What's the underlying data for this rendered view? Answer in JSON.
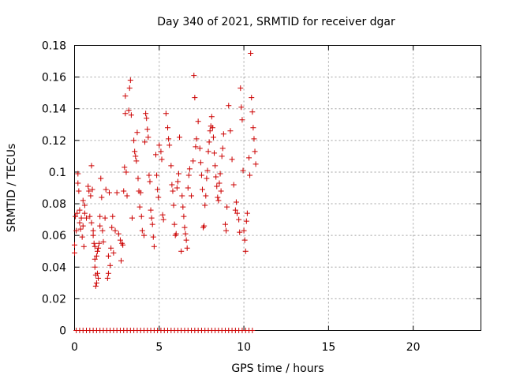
{
  "chart_data": {
    "type": "scatter",
    "title": "Day 340 of 2021, SRMTID for receiver dgar",
    "xlabel": "GPS time / hours",
    "ylabel": "SRMTID / TECUs",
    "xlim": [
      0,
      24
    ],
    "ylim": [
      0,
      0.18
    ],
    "xticks": [
      0,
      5,
      10,
      15,
      20
    ],
    "xtick_labels": [
      "0",
      "5",
      "10",
      "15",
      "20"
    ],
    "yticks": [
      0,
      0.02,
      0.04,
      0.06,
      0.08,
      0.1,
      0.12,
      0.14,
      0.16,
      0.18
    ],
    "ytick_labels": [
      "0",
      "0.02",
      "0.04",
      "0.06",
      "0.08",
      "0.1",
      "0.12",
      "0.14",
      "0.16",
      "0.18"
    ],
    "grid": true,
    "marker": "+",
    "color": "#cc0000",
    "series": [
      {
        "name": "SRMTID",
        "points": [
          [
            0.0,
            0.049
          ],
          [
            0.0,
            0.054
          ],
          [
            0.05,
            0.072
          ],
          [
            0.1,
            0.063
          ],
          [
            0.15,
            0.074
          ],
          [
            0.2,
            0.099
          ],
          [
            0.2,
            0.093
          ],
          [
            0.25,
            0.088
          ],
          [
            0.3,
            0.076
          ],
          [
            0.3,
            0.068
          ],
          [
            0.35,
            0.064
          ],
          [
            0.4,
            0.071
          ],
          [
            0.45,
            0.059
          ],
          [
            0.5,
            0.082
          ],
          [
            0.5,
            0.066
          ],
          [
            0.55,
            0.053
          ],
          [
            0.6,
            0.079
          ],
          [
            0.6,
            0.074
          ],
          [
            0.7,
            0.071
          ],
          [
            0.8,
            0.091
          ],
          [
            0.85,
            0.088
          ],
          [
            0.9,
            0.072
          ],
          [
            0.95,
            0.085
          ],
          [
            1.0,
            0.104
          ],
          [
            1.0,
            0.068
          ],
          [
            1.05,
            0.089
          ],
          [
            1.1,
            0.063
          ],
          [
            1.1,
            0.06
          ],
          [
            1.15,
            0.055
          ],
          [
            1.2,
            0.053
          ],
          [
            1.2,
            0.045
          ],
          [
            1.2,
            0.04
          ],
          [
            1.25,
            0.035
          ],
          [
            1.25,
            0.028
          ],
          [
            1.3,
            0.03
          ],
          [
            1.3,
            0.047
          ],
          [
            1.35,
            0.05
          ],
          [
            1.35,
            0.036
          ],
          [
            1.4,
            0.033
          ],
          [
            1.4,
            0.052
          ],
          [
            1.45,
            0.055
          ],
          [
            1.5,
            0.072
          ],
          [
            1.5,
            0.066
          ],
          [
            1.55,
            0.096
          ],
          [
            1.6,
            0.084
          ],
          [
            1.65,
            0.063
          ],
          [
            1.7,
            0.056
          ],
          [
            1.8,
            0.071
          ],
          [
            1.85,
            0.089
          ],
          [
            1.95,
            0.033
          ],
          [
            2.0,
            0.036
          ],
          [
            2.0,
            0.047
          ],
          [
            2.05,
            0.087
          ],
          [
            2.1,
            0.041
          ],
          [
            2.15,
            0.052
          ],
          [
            2.2,
            0.065
          ],
          [
            2.25,
            0.072
          ],
          [
            2.3,
            0.049
          ],
          [
            2.4,
            0.063
          ],
          [
            2.5,
            0.087
          ],
          [
            2.6,
            0.061
          ],
          [
            2.7,
            0.057
          ],
          [
            2.75,
            0.044
          ],
          [
            2.8,
            0.055
          ],
          [
            2.85,
            0.054
          ],
          [
            2.9,
            0.088
          ],
          [
            2.95,
            0.103
          ],
          [
            3.0,
            0.148
          ],
          [
            3.0,
            0.137
          ],
          [
            3.05,
            0.1
          ],
          [
            3.1,
            0.085
          ],
          [
            3.2,
            0.139
          ],
          [
            3.25,
            0.153
          ],
          [
            3.3,
            0.158
          ],
          [
            3.35,
            0.136
          ],
          [
            3.4,
            0.071
          ],
          [
            3.5,
            0.12
          ],
          [
            3.55,
            0.113
          ],
          [
            3.6,
            0.11
          ],
          [
            3.65,
            0.107
          ],
          [
            3.7,
            0.125
          ],
          [
            3.75,
            0.096
          ],
          [
            3.8,
            0.088
          ],
          [
            3.85,
            0.078
          ],
          [
            3.9,
            0.087
          ],
          [
            3.95,
            0.072
          ],
          [
            4.0,
            0.063
          ],
          [
            4.1,
            0.06
          ],
          [
            4.15,
            0.119
          ],
          [
            4.2,
            0.137
          ],
          [
            4.25,
            0.134
          ],
          [
            4.3,
            0.127
          ],
          [
            4.35,
            0.122
          ],
          [
            4.4,
            0.098
          ],
          [
            4.45,
            0.094
          ],
          [
            4.5,
            0.076
          ],
          [
            4.55,
            0.071
          ],
          [
            4.6,
            0.067
          ],
          [
            4.65,
            0.059
          ],
          [
            4.7,
            0.053
          ],
          [
            4.8,
            0.111
          ],
          [
            4.85,
            0.098
          ],
          [
            4.9,
            0.089
          ],
          [
            4.95,
            0.084
          ],
          [
            5.0,
            0.117
          ],
          [
            5.1,
            0.113
          ],
          [
            5.15,
            0.108
          ],
          [
            5.2,
            0.073
          ],
          [
            5.25,
            0.07
          ],
          [
            5.4,
            0.137
          ],
          [
            5.5,
            0.128
          ],
          [
            5.55,
            0.121
          ],
          [
            5.6,
            0.117
          ],
          [
            5.7,
            0.104
          ],
          [
            5.75,
            0.092
          ],
          [
            5.8,
            0.088
          ],
          [
            5.85,
            0.079
          ],
          [
            5.9,
            0.067
          ],
          [
            5.95,
            0.06
          ],
          [
            6.0,
            0.061
          ],
          [
            6.05,
            0.09
          ],
          [
            6.1,
            0.094
          ],
          [
            6.15,
            0.099
          ],
          [
            6.2,
            0.122
          ],
          [
            6.3,
            0.05
          ],
          [
            6.35,
            0.085
          ],
          [
            6.4,
            0.078
          ],
          [
            6.45,
            0.072
          ],
          [
            6.5,
            0.065
          ],
          [
            6.55,
            0.061
          ],
          [
            6.6,
            0.057
          ],
          [
            6.65,
            0.052
          ],
          [
            6.7,
            0.09
          ],
          [
            6.75,
            0.098
          ],
          [
            6.8,
            0.102
          ],
          [
            6.9,
            0.085
          ],
          [
            7.0,
            0.107
          ],
          [
            7.05,
            0.161
          ],
          [
            7.1,
            0.147
          ],
          [
            7.15,
            0.116
          ],
          [
            7.2,
            0.121
          ],
          [
            7.3,
            0.132
          ],
          [
            7.4,
            0.115
          ],
          [
            7.45,
            0.106
          ],
          [
            7.5,
            0.098
          ],
          [
            7.55,
            0.089
          ],
          [
            7.6,
            0.065
          ],
          [
            7.65,
            0.066
          ],
          [
            7.7,
            0.079
          ],
          [
            7.75,
            0.085
          ],
          [
            7.8,
            0.096
          ],
          [
            7.85,
            0.101
          ],
          [
            7.9,
            0.113
          ],
          [
            7.95,
            0.119
          ],
          [
            8.0,
            0.126
          ],
          [
            8.05,
            0.129
          ],
          [
            8.1,
            0.135
          ],
          [
            8.15,
            0.128
          ],
          [
            8.2,
            0.122
          ],
          [
            8.25,
            0.112
          ],
          [
            8.3,
            0.104
          ],
          [
            8.35,
            0.097
          ],
          [
            8.4,
            0.091
          ],
          [
            8.45,
            0.084
          ],
          [
            8.5,
            0.082
          ],
          [
            8.55,
            0.093
          ],
          [
            8.6,
            0.099
          ],
          [
            8.65,
            0.088
          ],
          [
            8.7,
            0.11
          ],
          [
            8.75,
            0.115
          ],
          [
            8.8,
            0.124
          ],
          [
            8.9,
            0.067
          ],
          [
            8.95,
            0.063
          ],
          [
            9.0,
            0.078
          ],
          [
            9.1,
            0.142
          ],
          [
            9.2,
            0.126
          ],
          [
            9.3,
            0.108
          ],
          [
            9.4,
            0.092
          ],
          [
            9.5,
            0.076
          ],
          [
            9.55,
            0.081
          ],
          [
            9.6,
            0.074
          ],
          [
            9.7,
            0.07
          ],
          [
            9.75,
            0.062
          ],
          [
            9.8,
            0.153
          ],
          [
            9.85,
            0.141
          ],
          [
            9.9,
            0.133
          ],
          [
            9.95,
            0.101
          ],
          [
            10.0,
            0.063
          ],
          [
            10.05,
            0.057
          ],
          [
            10.1,
            0.05
          ],
          [
            10.15,
            0.069
          ],
          [
            10.2,
            0.074
          ],
          [
            10.3,
            0.109
          ],
          [
            10.35,
            0.098
          ],
          [
            10.4,
            0.175
          ],
          [
            10.45,
            0.147
          ],
          [
            10.5,
            0.138
          ],
          [
            10.55,
            0.128
          ],
          [
            10.6,
            0.121
          ],
          [
            10.65,
            0.113
          ],
          [
            10.7,
            0.105
          ],
          [
            0.1,
            0.0
          ],
          [
            0.3,
            0.0
          ],
          [
            0.5,
            0.0
          ],
          [
            0.7,
            0.0
          ],
          [
            0.9,
            0.0
          ],
          [
            1.1,
            0.0
          ],
          [
            1.3,
            0.0
          ],
          [
            1.5,
            0.0
          ],
          [
            1.7,
            0.0
          ],
          [
            1.9,
            0.0
          ],
          [
            2.1,
            0.0
          ],
          [
            2.3,
            0.0
          ],
          [
            2.5,
            0.0
          ],
          [
            2.7,
            0.0
          ],
          [
            2.9,
            0.0
          ],
          [
            3.1,
            0.0
          ],
          [
            3.3,
            0.0
          ],
          [
            3.5,
            0.0
          ],
          [
            3.7,
            0.0
          ],
          [
            3.9,
            0.0
          ],
          [
            4.1,
            0.0
          ],
          [
            4.3,
            0.0
          ],
          [
            4.5,
            0.0
          ],
          [
            4.7,
            0.0
          ],
          [
            4.9,
            0.0
          ],
          [
            5.1,
            0.0
          ],
          [
            5.3,
            0.0
          ],
          [
            5.5,
            0.0
          ],
          [
            5.7,
            0.0
          ],
          [
            5.9,
            0.0
          ],
          [
            6.1,
            0.0
          ],
          [
            6.3,
            0.0
          ],
          [
            6.5,
            0.0
          ],
          [
            6.7,
            0.0
          ],
          [
            6.9,
            0.0
          ],
          [
            7.1,
            0.0
          ],
          [
            7.3,
            0.0
          ],
          [
            7.5,
            0.0
          ],
          [
            7.7,
            0.0
          ],
          [
            7.9,
            0.0
          ],
          [
            8.1,
            0.0
          ],
          [
            8.3,
            0.0
          ],
          [
            8.5,
            0.0
          ],
          [
            8.7,
            0.0
          ],
          [
            8.9,
            0.0
          ],
          [
            9.1,
            0.0
          ],
          [
            9.3,
            0.0
          ],
          [
            9.5,
            0.0
          ],
          [
            9.7,
            0.0
          ],
          [
            9.9,
            0.0
          ],
          [
            10.1,
            0.0
          ],
          [
            10.3,
            0.0
          ],
          [
            10.5,
            0.0
          ]
        ]
      }
    ]
  }
}
